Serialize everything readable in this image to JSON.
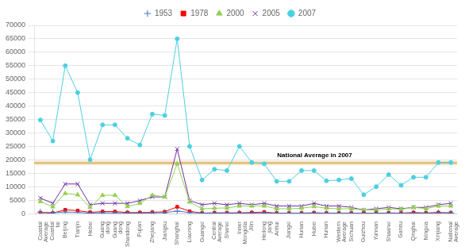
{
  "chart_data": {
    "type": "line",
    "categories": [
      "Coastal\nAverage",
      "Coastal\ntai",
      "Beijing",
      "Tianjin",
      "Hebei",
      "Guang\ndong",
      "Guang\ndong",
      "Shandong",
      "Fujian",
      "Zhejiang",
      "Jiangsu",
      "Shanghai",
      "Liaoning",
      "Guangxi",
      "Central\nAverage",
      "Shanxi",
      "Inner\nMongolia",
      "Jilin",
      "Heilong\njiang",
      "Anhui",
      "Jiangxi",
      "Hunan",
      "Hubei",
      "Hunan",
      "Western\nAverage",
      "Sichuan",
      "Guizhou",
      "Yunnan",
      "Shaanxi",
      "Gansu",
      "Qinghai",
      "Ningxia",
      "Xinjiang",
      "National\nAverage"
    ],
    "series": [
      {
        "name": "1953",
        "color": "#4472C4",
        "marker": "plus",
        "values": [
          500,
          350,
          550,
          450,
          180,
          280,
          280,
          200,
          180,
          280,
          380,
          900,
          380,
          180,
          180,
          180,
          180,
          180,
          280,
          130,
          130,
          130,
          180,
          130,
          130,
          130,
          90,
          90,
          130,
          130,
          180,
          130,
          280,
          200
        ]
      },
      {
        "name": "1978",
        "color": "#FF0000",
        "marker": "square",
        "values": [
          350,
          180,
          1400,
          1100,
          450,
          750,
          750,
          380,
          380,
          480,
          650,
          2500,
          850,
          180,
          280,
          280,
          280,
          380,
          550,
          180,
          180,
          180,
          280,
          180,
          180,
          180,
          130,
          130,
          230,
          180,
          380,
          230,
          380,
          280
        ]
      },
      {
        "name": "2000",
        "color": "#92D050",
        "marker": "triangle",
        "values": [
          4500,
          2500,
          7500,
          7000,
          2300,
          6800,
          6800,
          2600,
          3800,
          6800,
          6200,
          18500,
          4300,
          1800,
          2000,
          2100,
          2800,
          2800,
          2800,
          1800,
          1800,
          2000,
          2600,
          2000,
          1800,
          1800,
          1300,
          1300,
          1800,
          1600,
          2300,
          1800,
          2800,
          2800
        ]
      },
      {
        "name": "2005",
        "color": "#7030A0",
        "marker": "x",
        "values": [
          5800,
          3800,
          11000,
          11000,
          3300,
          3800,
          3800,
          3800,
          4800,
          6200,
          6200,
          24000,
          4800,
          3300,
          3800,
          3300,
          3800,
          3300,
          3800,
          2800,
          2800,
          2800,
          3800,
          2800,
          2800,
          2300,
          1300,
          1800,
          2300,
          1800,
          2300,
          2300,
          3300,
          3800
        ]
      },
      {
        "name": "2007",
        "color": "#4DD0E1",
        "marker": "circle",
        "values": [
          34800,
          27000,
          55000,
          45000,
          20000,
          33000,
          33000,
          28000,
          25500,
          37000,
          36500,
          65000,
          25000,
          12500,
          16500,
          16000,
          25000,
          19000,
          18500,
          12000,
          12000,
          16000,
          16000,
          12200,
          12500,
          13000,
          7000,
          10000,
          14500,
          10500,
          13500,
          13500,
          19000,
          19000
        ]
      }
    ],
    "annotations": [
      {
        "text": "National Average in 2007",
        "y": 18800,
        "band": [
          18000,
          19600
        ],
        "color": "#C8A850",
        "band_color": "#F5DEB3"
      }
    ],
    "ylim": [
      0,
      70000
    ],
    "yticks": [
      0,
      5000,
      10000,
      15000,
      20000,
      25000,
      30000,
      35000,
      40000,
      45000,
      50000,
      55000,
      60000,
      65000,
      70000
    ],
    "grid": true,
    "legend": "top"
  }
}
